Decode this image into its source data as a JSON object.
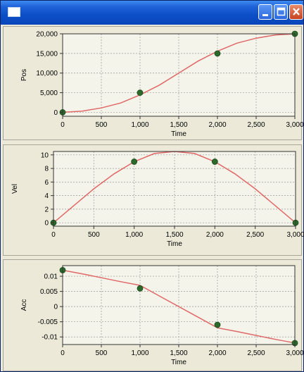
{
  "window": {
    "icons": {
      "app": "window-icon",
      "minimize": "minimize-icon",
      "maximize": "maximize-icon",
      "close": "close-icon"
    },
    "colors": {
      "titlebar": "#0b4fc8",
      "plot_background": "#f5f4ea",
      "curve": "#e06868",
      "points": "#2b6a2b",
      "grid": "#999999"
    }
  },
  "chart_data": [
    {
      "type": "line",
      "xlabel": "Time",
      "ylabel": "Pos",
      "xlim": [
        0,
        3000
      ],
      "ylim": [
        -1000,
        20000
      ],
      "xticks": [
        0,
        500,
        1000,
        1500,
        2000,
        2500,
        3000
      ],
      "xtick_labels": [
        "0",
        "500",
        "1,000",
        "1,500",
        "2,000",
        "2,500",
        "3,000"
      ],
      "yticks": [
        0,
        5000,
        10000,
        15000,
        20000
      ],
      "ytick_labels": [
        "0",
        "5,000",
        "10,000",
        "15,000",
        "20,000"
      ],
      "grid": true,
      "series": [
        {
          "x": [
            0,
            250,
            500,
            750,
            1000,
            1250,
            1500,
            1750,
            2000,
            2250,
            2500,
            2750,
            3000
          ],
          "y": [
            0,
            290,
            1110,
            2380,
            4440,
            6940,
            10000,
            13060,
            15560,
            17620,
            18890,
            19710,
            20000
          ]
        }
      ],
      "points": {
        "x": [
          0,
          1000,
          2000,
          3000
        ],
        "y": [
          0,
          5000,
          15000,
          20000
        ]
      }
    },
    {
      "type": "line",
      "xlabel": "Time",
      "ylabel": "Vel",
      "xlim": [
        0,
        3000
      ],
      "ylim": [
        -0.5,
        10.5
      ],
      "xticks": [
        0,
        500,
        1000,
        1500,
        2000,
        2500,
        3000
      ],
      "xtick_labels": [
        "0",
        "500",
        "1,000",
        "1,500",
        "2,000",
        "2,500",
        "3,000"
      ],
      "yticks": [
        0,
        2,
        4,
        6,
        8,
        10
      ],
      "ytick_labels": [
        "0",
        "2",
        "4",
        "6",
        "8",
        "10"
      ],
      "grid": true,
      "series": [
        {
          "x": [
            0,
            250,
            500,
            750,
            1000,
            1250,
            1500,
            1750,
            2000,
            2250,
            2500,
            2750,
            3000
          ],
          "y": [
            0,
            2.5,
            5,
            7.2,
            9,
            10.2,
            10.5,
            10.2,
            9,
            7.2,
            5,
            2.5,
            0
          ]
        }
      ],
      "points": {
        "x": [
          0,
          1000,
          2000,
          3000
        ],
        "y": [
          0,
          9,
          9,
          0
        ]
      }
    },
    {
      "type": "line",
      "xlabel": "Time",
      "ylabel": "Acc",
      "xlim": [
        0,
        3000
      ],
      "ylim": [
        -0.0125,
        0.0135
      ],
      "xticks": [
        0,
        500,
        1000,
        1500,
        2000,
        2500,
        3000
      ],
      "xtick_labels": [
        "0",
        "500",
        "1,000",
        "1,500",
        "2,000",
        "2,500",
        "3,000"
      ],
      "yticks": [
        0.01,
        0.005,
        0,
        -0.005,
        -0.01
      ],
      "ytick_labels": [
        "0.01",
        "0.005",
        "0",
        "-0.005",
        "-0.01"
      ],
      "grid": true,
      "series": [
        {
          "x": [
            0,
            250,
            500,
            750,
            1000,
            1250,
            1500,
            1750,
            2000,
            2250,
            2500,
            2750,
            3000
          ],
          "y": [
            0.012,
            0.0108,
            0.0095,
            0.0082,
            0.007,
            0.0035,
            0,
            -0.0035,
            -0.007,
            -0.0082,
            -0.0095,
            -0.0108,
            -0.012
          ]
        }
      ],
      "points": {
        "x": [
          0,
          1000,
          2000,
          3000
        ],
        "y": [
          0.012,
          0.006,
          -0.006,
          -0.012
        ]
      }
    }
  ]
}
